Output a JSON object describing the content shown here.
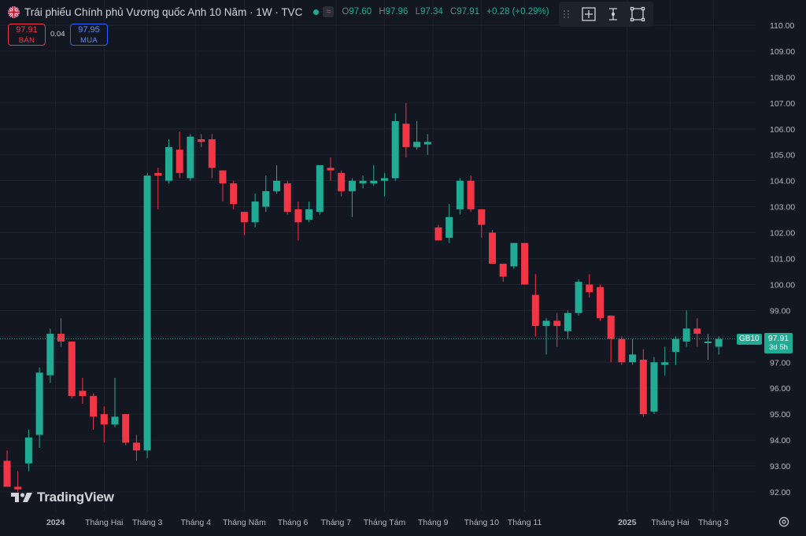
{
  "header": {
    "title": "Trái phiếu Chính phủ Vương quốc Anh 10 Năm · 1W · TVC",
    "ohlc": {
      "o_label": "O",
      "o": "97.60",
      "h_label": "H",
      "h": "97.96",
      "l_label": "L",
      "l": "97.34",
      "c_label": "C",
      "c": "97.91",
      "change": "+0.28 (+0.29%)"
    },
    "flag_icon": "uk-flag-icon",
    "status_icon": "market-open-dot-icon"
  },
  "trade": {
    "sell_price": "97.91",
    "sell_label": "BÁN",
    "spread": "0.04",
    "buy_price": "97.95",
    "buy_label": "MUA"
  },
  "toolbar": {
    "icons": [
      "crosshair-icon",
      "measure-icon",
      "zoom-range-icon"
    ]
  },
  "price_tags": {
    "symbol": "GB10",
    "price": "97.91",
    "countdown": "3d 5h"
  },
  "logo": {
    "text": "TradingView",
    "icon": "tv-logo-icon"
  },
  "colors": {
    "background": "#131722",
    "up": "#22ab94",
    "down": "#f23645",
    "grid": "#1f2330",
    "text": "#b2b5be"
  },
  "chart_data": {
    "type": "candlestick",
    "title": "Trái phiếu Chính phủ Vương quốc Anh 10 Năm · 1W · TVC",
    "ylim": [
      91.6,
      110.4
    ],
    "y_ticks": [
      "92.00",
      "93.00",
      "94.00",
      "95.00",
      "96.00",
      "97.00",
      "98.00",
      "99.00",
      "100.00",
      "101.00",
      "102.00",
      "103.00",
      "104.00",
      "105.00",
      "106.00",
      "107.00",
      "108.00",
      "109.00",
      "110.00"
    ],
    "x_ticks": [
      {
        "i": 4.5,
        "label": "2024"
      },
      {
        "i": 9,
        "label": "Tháng Hai"
      },
      {
        "i": 13,
        "label": "Tháng 3"
      },
      {
        "i": 17.5,
        "label": "Tháng 4"
      },
      {
        "i": 22,
        "label": "Tháng Năm"
      },
      {
        "i": 26.5,
        "label": "Tháng 6"
      },
      {
        "i": 30.5,
        "label": "Tháng 7"
      },
      {
        "i": 35,
        "label": "Tháng Tám"
      },
      {
        "i": 39.5,
        "label": "Tháng 9"
      },
      {
        "i": 44,
        "label": "Tháng 10"
      },
      {
        "i": 48,
        "label": "Tháng 11"
      },
      {
        "i": 57.5,
        "label": "2025"
      },
      {
        "i": 61.5,
        "label": "Tháng Hai"
      },
      {
        "i": 65.5,
        "label": "Tháng 3"
      }
    ],
    "last_price": 97.91,
    "candles": [
      {
        "o": 93.2,
        "h": 93.6,
        "l": 92.2,
        "c": 92.2
      },
      {
        "o": 92.2,
        "h": 92.8,
        "l": 92.0,
        "c": 92.1
      },
      {
        "o": 93.1,
        "h": 94.4,
        "l": 92.8,
        "c": 94.1
      },
      {
        "o": 94.2,
        "h": 96.8,
        "l": 93.7,
        "c": 96.6
      },
      {
        "o": 96.5,
        "h": 98.3,
        "l": 96.2,
        "c": 98.1
      },
      {
        "o": 98.1,
        "h": 98.7,
        "l": 97.6,
        "c": 97.8
      },
      {
        "o": 97.8,
        "h": 97.8,
        "l": 95.6,
        "c": 95.7
      },
      {
        "o": 95.9,
        "h": 96.4,
        "l": 95.4,
        "c": 95.7
      },
      {
        "o": 95.7,
        "h": 95.8,
        "l": 94.4,
        "c": 94.9
      },
      {
        "o": 95.0,
        "h": 95.3,
        "l": 93.9,
        "c": 94.6
      },
      {
        "o": 94.6,
        "h": 96.4,
        "l": 94.5,
        "c": 94.9
      },
      {
        "o": 95.0,
        "h": 95.0,
        "l": 93.8,
        "c": 93.9
      },
      {
        "o": 93.9,
        "h": 94.2,
        "l": 93.2,
        "c": 93.6
      },
      {
        "o": 93.6,
        "h": 104.3,
        "l": 93.3,
        "c": 104.2
      },
      {
        "o": 104.3,
        "h": 104.5,
        "l": 102.9,
        "c": 104.2
      },
      {
        "o": 104.0,
        "h": 105.6,
        "l": 103.9,
        "c": 105.3
      },
      {
        "o": 105.2,
        "h": 105.9,
        "l": 104.1,
        "c": 104.3
      },
      {
        "o": 104.1,
        "h": 105.8,
        "l": 104.0,
        "c": 105.7
      },
      {
        "o": 105.6,
        "h": 105.8,
        "l": 105.3,
        "c": 105.5
      },
      {
        "o": 105.6,
        "h": 105.8,
        "l": 104.1,
        "c": 104.5
      },
      {
        "o": 104.4,
        "h": 104.4,
        "l": 103.2,
        "c": 103.9
      },
      {
        "o": 103.9,
        "h": 104.0,
        "l": 102.9,
        "c": 103.1
      },
      {
        "o": 102.8,
        "h": 102.8,
        "l": 101.9,
        "c": 102.4
      },
      {
        "o": 102.4,
        "h": 103.5,
        "l": 102.2,
        "c": 103.2
      },
      {
        "o": 103.0,
        "h": 104.2,
        "l": 102.8,
        "c": 103.6
      },
      {
        "o": 103.6,
        "h": 104.6,
        "l": 103.5,
        "c": 104.0
      },
      {
        "o": 103.9,
        "h": 104.0,
        "l": 102.7,
        "c": 102.8
      },
      {
        "o": 102.9,
        "h": 103.2,
        "l": 101.7,
        "c": 102.4
      },
      {
        "o": 102.5,
        "h": 103.2,
        "l": 102.4,
        "c": 102.9
      },
      {
        "o": 102.8,
        "h": 104.6,
        "l": 102.7,
        "c": 104.6
      },
      {
        "o": 104.5,
        "h": 104.9,
        "l": 104.0,
        "c": 104.4
      },
      {
        "o": 104.3,
        "h": 104.4,
        "l": 103.4,
        "c": 103.6
      },
      {
        "o": 103.6,
        "h": 104.1,
        "l": 102.6,
        "c": 104.0
      },
      {
        "o": 103.9,
        "h": 104.2,
        "l": 103.7,
        "c": 104.0
      },
      {
        "o": 103.9,
        "h": 104.6,
        "l": 103.8,
        "c": 104.0
      },
      {
        "o": 104.0,
        "h": 104.3,
        "l": 103.4,
        "c": 104.1
      },
      {
        "o": 104.1,
        "h": 106.6,
        "l": 104.0,
        "c": 106.3
      },
      {
        "o": 106.2,
        "h": 107.0,
        "l": 104.9,
        "c": 105.3
      },
      {
        "o": 105.3,
        "h": 106.3,
        "l": 105.2,
        "c": 105.5
      },
      {
        "o": 105.4,
        "h": 105.8,
        "l": 105.0,
        "c": 105.5
      },
      {
        "o": 102.2,
        "h": 102.3,
        "l": 101.7,
        "c": 101.7
      },
      {
        "o": 101.8,
        "h": 103.1,
        "l": 101.6,
        "c": 102.6
      },
      {
        "o": 102.9,
        "h": 104.1,
        "l": 102.7,
        "c": 104.0
      },
      {
        "o": 104.0,
        "h": 104.2,
        "l": 102.8,
        "c": 102.9
      },
      {
        "o": 102.9,
        "h": 102.9,
        "l": 101.8,
        "c": 102.3
      },
      {
        "o": 102.0,
        "h": 102.1,
        "l": 100.8,
        "c": 100.8
      },
      {
        "o": 100.8,
        "h": 100.8,
        "l": 100.1,
        "c": 100.3
      },
      {
        "o": 100.7,
        "h": 101.6,
        "l": 100.6,
        "c": 101.6
      },
      {
        "o": 101.6,
        "h": 101.6,
        "l": 100.0,
        "c": 100.0
      },
      {
        "o": 99.6,
        "h": 100.4,
        "l": 98.0,
        "c": 98.4
      },
      {
        "o": 98.4,
        "h": 98.7,
        "l": 97.3,
        "c": 98.6
      },
      {
        "o": 98.6,
        "h": 98.9,
        "l": 97.6,
        "c": 98.4
      },
      {
        "o": 98.2,
        "h": 99.0,
        "l": 97.9,
        "c": 98.9
      },
      {
        "o": 98.9,
        "h": 100.2,
        "l": 98.8,
        "c": 100.1
      },
      {
        "o": 100.0,
        "h": 100.4,
        "l": 99.5,
        "c": 99.7
      },
      {
        "o": 99.9,
        "h": 100.0,
        "l": 98.6,
        "c": 98.7
      },
      {
        "o": 98.8,
        "h": 98.8,
        "l": 97.0,
        "c": 97.9
      },
      {
        "o": 97.9,
        "h": 98.0,
        "l": 96.9,
        "c": 97.0
      },
      {
        "o": 97.0,
        "h": 97.9,
        "l": 96.9,
        "c": 97.3
      },
      {
        "o": 97.1,
        "h": 97.5,
        "l": 94.9,
        "c": 95.0
      },
      {
        "o": 95.1,
        "h": 97.2,
        "l": 95.0,
        "c": 97.0
      },
      {
        "o": 96.9,
        "h": 97.6,
        "l": 96.5,
        "c": 97.0
      },
      {
        "o": 97.4,
        "h": 98.0,
        "l": 96.9,
        "c": 97.9
      },
      {
        "o": 97.8,
        "h": 99.0,
        "l": 97.6,
        "c": 98.3
      },
      {
        "o": 98.3,
        "h": 98.7,
        "l": 97.6,
        "c": 98.1
      },
      {
        "o": 97.8,
        "h": 98.1,
        "l": 97.1,
        "c": 97.8
      },
      {
        "o": 97.6,
        "h": 98.0,
        "l": 97.3,
        "c": 97.9
      }
    ]
  }
}
